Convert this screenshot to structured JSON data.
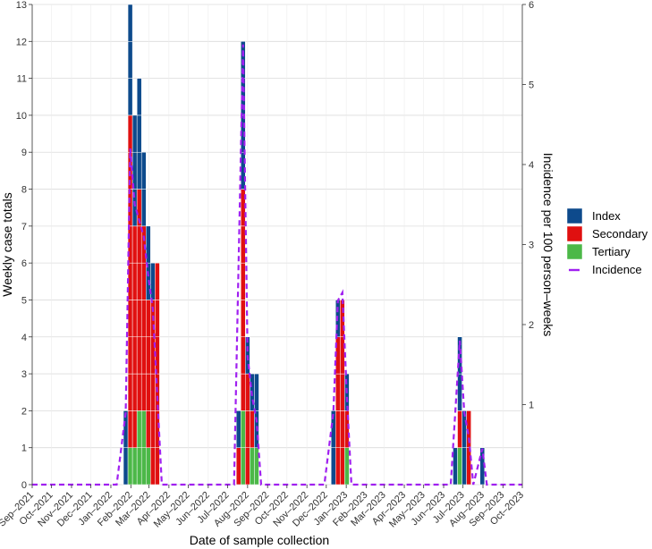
{
  "chart_data": {
    "type": "bar",
    "xlabel": "Date of sample collection",
    "ylabel": "Weekly case totals",
    "y2label": "Incidence per 100 person–weeks",
    "ylim": [
      0,
      13
    ],
    "y2lim": [
      0,
      6
    ],
    "yticks": [
      0,
      1,
      2,
      3,
      4,
      5,
      6,
      7,
      8,
      9,
      10,
      11,
      12,
      13
    ],
    "y2ticks": [
      1,
      2,
      3,
      4,
      5,
      6
    ],
    "x_tick_labels": [
      "Sep–2021",
      "Oct–2021",
      "Nov–2021",
      "Dec–2021",
      "Jan–2022",
      "Feb–2022",
      "Mar–2022",
      "Apr–2022",
      "May–2022",
      "Jun–2022",
      "Jul–2022",
      "Aug–2022",
      "Sep–2022",
      "Oct–2022",
      "Nov–2022",
      "Dec–2022",
      "Jan–2023",
      "Feb–2023",
      "Mar–2023",
      "Apr–2023",
      "May–2023",
      "Jun–2023",
      "Jul–2023",
      "Aug–2023",
      "Sep–2023",
      "Oct–2023"
    ],
    "x_range": [
      "2021-09-01",
      "2023-10-01"
    ],
    "grid": true,
    "legend_position": "right",
    "legend": [
      {
        "name": "Index",
        "kind": "box",
        "color": "#0d4a8c"
      },
      {
        "name": "Secondary",
        "kind": "box",
        "color": "#e01010"
      },
      {
        "name": "Tertiary",
        "kind": "box",
        "color": "#4cb848"
      },
      {
        "name": "Incidence",
        "kind": "dash",
        "color": "#a020f0"
      }
    ],
    "series_colors": {
      "index": "#0d4a8c",
      "secondary": "#e01010",
      "tertiary": "#4cb848",
      "incidence": "#a020f0"
    },
    "weeks": [
      {
        "date": "2022-01-24",
        "index": 2,
        "secondary": 0,
        "tertiary": 0
      },
      {
        "date": "2022-01-31",
        "index": 3,
        "secondary": 9,
        "tertiary": 1
      },
      {
        "date": "2022-02-07",
        "index": 3,
        "secondary": 6,
        "tertiary": 1
      },
      {
        "date": "2022-02-14",
        "index": 3,
        "secondary": 6,
        "tertiary": 2
      },
      {
        "date": "2022-02-21",
        "index": 2,
        "secondary": 5,
        "tertiary": 2
      },
      {
        "date": "2022-02-28",
        "index": 2,
        "secondary": 4,
        "tertiary": 1
      },
      {
        "date": "2022-03-07",
        "index": 1,
        "secondary": 5,
        "tertiary": 0
      },
      {
        "date": "2022-03-14",
        "index": 0,
        "secondary": 6,
        "tertiary": 0
      },
      {
        "date": "2022-07-18",
        "index": 1,
        "secondary": 1,
        "tertiary": 0
      },
      {
        "date": "2022-07-25",
        "index": 4,
        "secondary": 6,
        "tertiary": 2
      },
      {
        "date": "2022-08-01",
        "index": 1,
        "secondary": 3,
        "tertiary": 0
      },
      {
        "date": "2022-08-08",
        "index": 1,
        "secondary": 1,
        "tertiary": 1
      },
      {
        "date": "2022-08-15",
        "index": 2,
        "secondary": 0,
        "tertiary": 1
      },
      {
        "date": "2022-12-12",
        "index": 2,
        "secondary": 0,
        "tertiary": 0
      },
      {
        "date": "2022-12-19",
        "index": 1,
        "secondary": 4,
        "tertiary": 0
      },
      {
        "date": "2022-12-26",
        "index": 0,
        "secondary": 5,
        "tertiary": 0
      },
      {
        "date": "2023-01-02",
        "index": 1,
        "secondary": 1,
        "tertiary": 1
      },
      {
        "date": "2023-06-19",
        "index": 1,
        "secondary": 0,
        "tertiary": 0
      },
      {
        "date": "2023-06-26",
        "index": 2,
        "secondary": 1,
        "tertiary": 1
      },
      {
        "date": "2023-07-03",
        "index": 2,
        "secondary": 0,
        "tertiary": 0
      },
      {
        "date": "2023-07-10",
        "index": 0,
        "secondary": 2,
        "tertiary": 0
      },
      {
        "date": "2023-07-31",
        "index": 1,
        "secondary": 0,
        "tertiary": 0
      }
    ],
    "incidence": [
      {
        "date": "2021-09-01",
        "value": 0
      },
      {
        "date": "2022-01-10",
        "value": 0
      },
      {
        "date": "2022-01-24",
        "value": 0.9
      },
      {
        "date": "2022-01-31",
        "value": 4.2
      },
      {
        "date": "2022-02-07",
        "value": 3.5
      },
      {
        "date": "2022-02-14",
        "value": 3.3
      },
      {
        "date": "2022-02-21",
        "value": 3.1
      },
      {
        "date": "2022-02-28",
        "value": 2.6
      },
      {
        "date": "2022-03-07",
        "value": 2.2
      },
      {
        "date": "2022-03-21",
        "value": 0
      },
      {
        "date": "2022-07-11",
        "value": 0
      },
      {
        "date": "2022-07-25",
        "value": 5.5
      },
      {
        "date": "2022-08-01",
        "value": 1.6
      },
      {
        "date": "2022-08-08",
        "value": 1.1
      },
      {
        "date": "2022-08-15",
        "value": 0.8
      },
      {
        "date": "2022-08-22",
        "value": 0
      },
      {
        "date": "2022-11-28",
        "value": 0
      },
      {
        "date": "2022-12-12",
        "value": 0.9
      },
      {
        "date": "2022-12-19",
        "value": 2.3
      },
      {
        "date": "2022-12-26",
        "value": 2.4
      },
      {
        "date": "2023-01-02",
        "value": 1.1
      },
      {
        "date": "2023-01-09",
        "value": 0
      },
      {
        "date": "2023-06-12",
        "value": 0
      },
      {
        "date": "2023-06-26",
        "value": 1.8
      },
      {
        "date": "2023-07-03",
        "value": 0.9
      },
      {
        "date": "2023-07-10",
        "value": 0.6
      },
      {
        "date": "2023-07-17",
        "value": 0
      },
      {
        "date": "2023-07-31",
        "value": 0.45
      },
      {
        "date": "2023-08-07",
        "value": 0
      },
      {
        "date": "2023-10-01",
        "value": 0
      }
    ]
  }
}
